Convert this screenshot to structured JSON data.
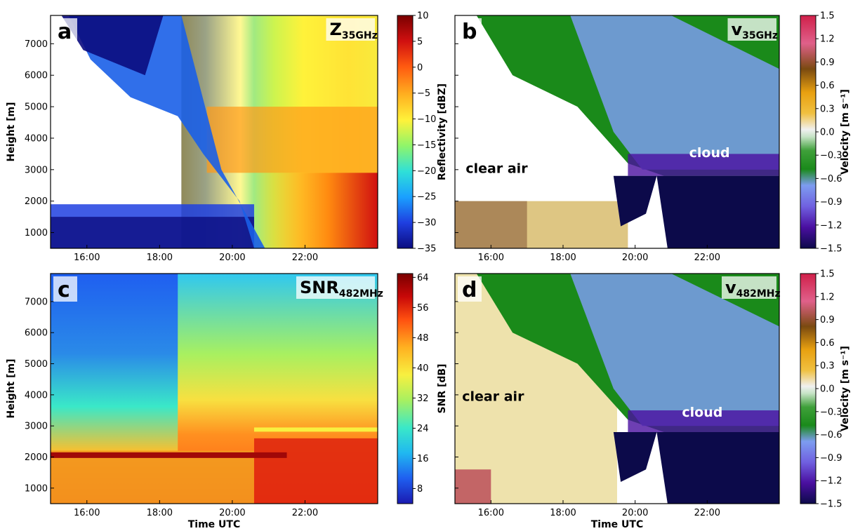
{
  "colors": {
    "reflectivity_scale": [
      "#0b0c80",
      "#1f3fe0",
      "#1aa0ff",
      "#2fe0d8",
      "#8ff56a",
      "#fff23a",
      "#ffb020",
      "#ff5a10",
      "#d01010",
      "#7a0000"
    ],
    "snr_scale": [
      "#1a1ab0",
      "#1f5ff0",
      "#20b8f0",
      "#3ae8c8",
      "#a8f060",
      "#f8f040",
      "#ffb020",
      "#ff5010",
      "#c80808",
      "#7a0000"
    ],
    "velocity_scale": [
      "#0c0a4a",
      "#4a0fa0",
      "#7060e0",
      "#7d9cf0",
      "#1a8a1a",
      "#3fa03a",
      "#c8e4c8",
      "#f0f0f0",
      "#f0c040",
      "#e8a010",
      "#7a4a10",
      "#e0608a",
      "#d0204a"
    ]
  },
  "chart_data": [
    {
      "id": "a",
      "type": "heatmap",
      "panel_letter": "a",
      "title_main": "Z",
      "title_sub": "35GHz",
      "xlabel": "",
      "ylabel": "Height [m]",
      "xticks": [
        "16:00",
        "18:00",
        "20:00",
        "22:00"
      ],
      "yticks": [
        "1000",
        "2000",
        "3000",
        "4000",
        "5000",
        "6000",
        "7000"
      ],
      "xlim": [
        "15:00",
        "24:00"
      ],
      "ylim": [
        500,
        7900
      ],
      "colorbar": {
        "label": "Reflectivity [dBZ]",
        "ticks": [
          "10",
          "5",
          "0",
          "−5",
          "−10",
          "−15",
          "−20",
          "−25",
          "−30",
          "−35"
        ],
        "range": [
          -35,
          10
        ]
      },
      "annotations": []
    },
    {
      "id": "b",
      "type": "heatmap",
      "panel_letter": "b",
      "title_main": "v",
      "title_sub": "35GHz",
      "xlabel": "",
      "ylabel": "",
      "xticks": [
        "16:00",
        "18:00",
        "20:00",
        "22:00"
      ],
      "yticks": [],
      "xlim": [
        "15:00",
        "24:00"
      ],
      "ylim": [
        500,
        7900
      ],
      "colorbar": {
        "label": "Velocity [m s⁻¹]",
        "ticks": [
          "1.5",
          "1.2",
          "0.9",
          "0.6",
          "0.3",
          "0.0",
          "−0.3",
          "−0.6",
          "−0.9",
          "−1.2",
          "−1.5"
        ],
        "range": [
          -1.5,
          1.5
        ]
      },
      "annotations": [
        {
          "text": "clear air",
          "color": "#000000"
        },
        {
          "text": "cloud",
          "color": "#ffffff"
        }
      ]
    },
    {
      "id": "c",
      "type": "heatmap",
      "panel_letter": "c",
      "title_main": "SNR",
      "title_sub": "482MHz",
      "xlabel": "Time UTC",
      "ylabel": "Height [m]",
      "xticks": [
        "16:00",
        "18:00",
        "20:00",
        "22:00"
      ],
      "yticks": [
        "1000",
        "2000",
        "3000",
        "4000",
        "5000",
        "6000",
        "7000"
      ],
      "xlim": [
        "15:00",
        "24:00"
      ],
      "ylim": [
        500,
        7900
      ],
      "colorbar": {
        "label": "SNR [dB]",
        "ticks": [
          "64",
          "56",
          "48",
          "40",
          "32",
          "24",
          "16",
          "8"
        ],
        "range": [
          4,
          65
        ]
      },
      "annotations": []
    },
    {
      "id": "d",
      "type": "heatmap",
      "panel_letter": "d",
      "title_main": "v",
      "title_sub": "482MHz",
      "xlabel": "Time UTC",
      "ylabel": "",
      "xticks": [
        "16:00",
        "18:00",
        "20:00",
        "22:00"
      ],
      "yticks": [],
      "xlim": [
        "15:00",
        "24:00"
      ],
      "ylim": [
        500,
        7900
      ],
      "colorbar": {
        "label": "Velocity [m s⁻¹]",
        "ticks": [
          "1.5",
          "1.2",
          "0.9",
          "0.6",
          "0.3",
          "0.0",
          "−0.3",
          "−0.6",
          "−0.9",
          "−1.2",
          "−1.5"
        ],
        "range": [
          -1.5,
          1.5
        ]
      },
      "annotations": [
        {
          "text": "clear air",
          "color": "#000000"
        },
        {
          "text": "cloud",
          "color": "#ffffff"
        }
      ]
    }
  ]
}
